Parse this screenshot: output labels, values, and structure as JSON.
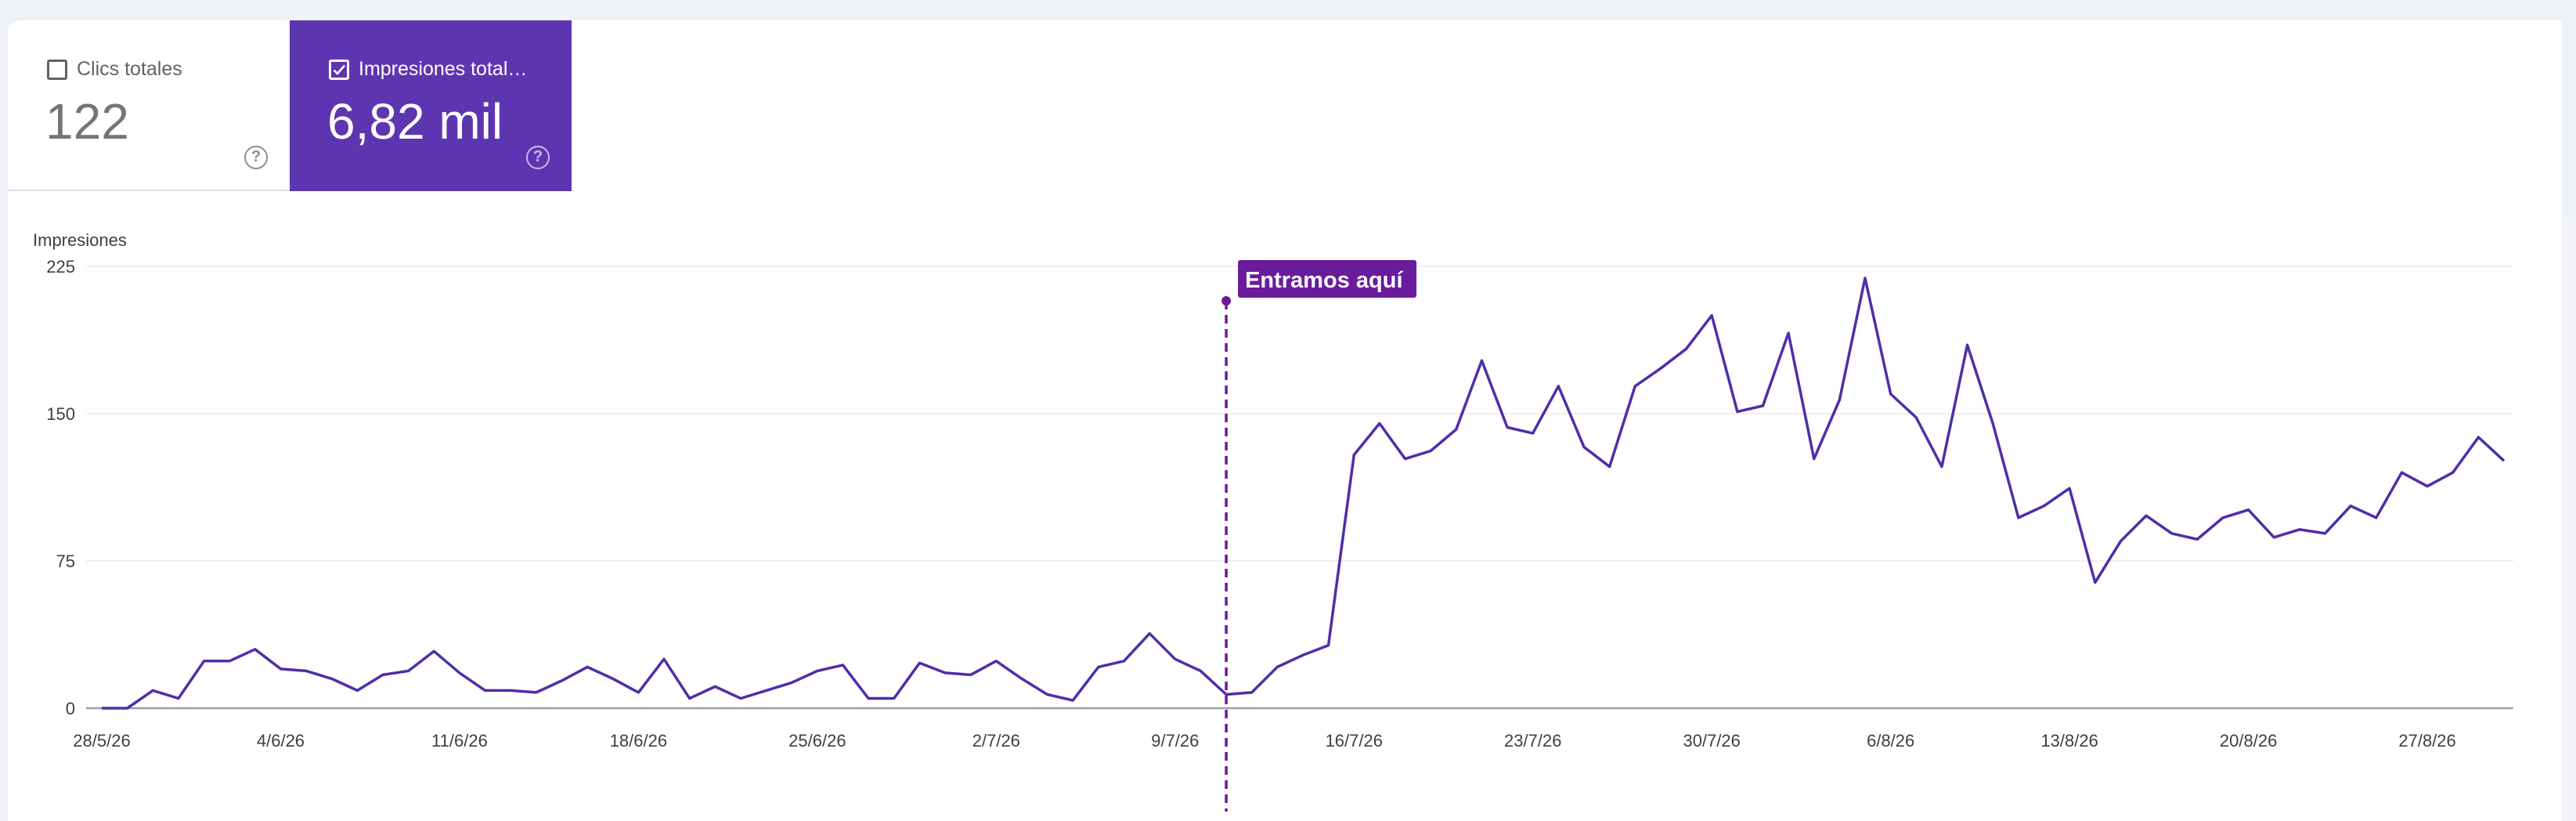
{
  "metrics": [
    {
      "label": "Clics totales",
      "value": "122",
      "checked": false,
      "help_glyph": "?"
    },
    {
      "label": "Impresiones total…",
      "value": "6,82 mil",
      "checked": true,
      "help_glyph": "?"
    }
  ],
  "colors": {
    "accent": "#5e35b1",
    "line": "#512da8",
    "annotation": "#6a1b9a",
    "grid": "#e8eaed",
    "text": "#5f6368"
  },
  "chart_data": {
    "type": "line",
    "ylabel": "Impresiones",
    "yticks": [
      0,
      75,
      150,
      225
    ],
    "ylim": [
      0,
      225
    ],
    "xtick_labels": [
      "28/5/26",
      "4/6/26",
      "11/6/26",
      "18/6/26",
      "25/6/26",
      "2/7/26",
      "9/7/26",
      "16/7/26",
      "23/7/26",
      "30/7/26",
      "6/8/26",
      "13/8/26",
      "20/8/26",
      "27/8/26"
    ],
    "x_start": "28/5/26",
    "x_end": "31/8/26",
    "annotation": {
      "date": "11/7/26",
      "label": "Entramos aquí"
    },
    "grid": true,
    "series": [
      {
        "values": [
          0,
          0,
          9,
          5,
          24,
          24,
          30,
          20,
          19,
          15,
          9,
          17,
          19,
          29,
          18,
          9,
          9,
          8,
          14,
          21,
          15,
          8,
          25,
          5,
          11,
          5,
          9,
          13,
          19,
          22,
          5,
          5,
          23,
          18,
          17,
          24,
          15,
          7,
          4,
          21,
          24,
          38,
          25,
          19,
          7,
          8,
          21,
          27,
          32,
          129,
          145,
          127,
          131,
          142,
          177,
          143,
          140,
          164,
          133,
          123,
          164,
          173,
          183,
          200,
          151,
          154,
          191,
          127,
          157,
          219,
          160,
          148,
          123,
          185,
          145,
          97,
          103,
          112,
          64,
          85,
          98,
          89,
          86,
          97,
          101,
          87,
          91,
          89,
          103,
          97,
          120,
          113,
          120,
          138,
          126
        ]
      }
    ]
  }
}
